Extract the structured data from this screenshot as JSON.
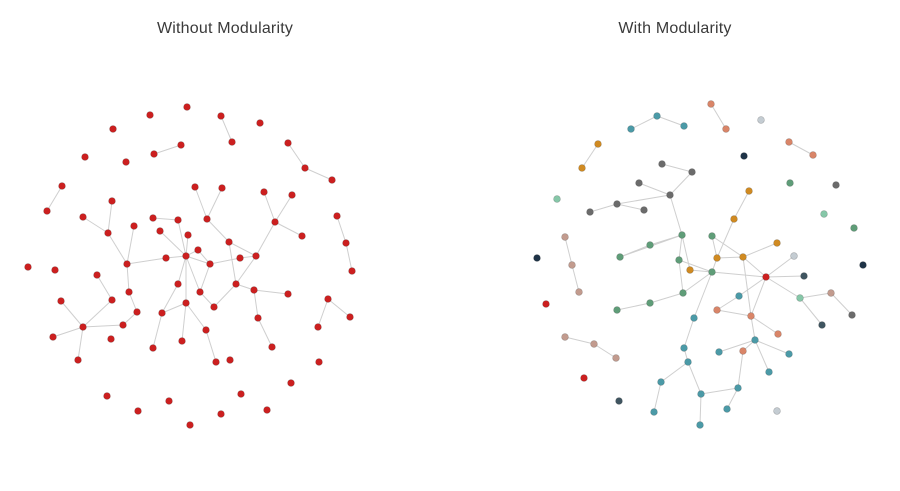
{
  "panels": {
    "left": {
      "title": "Without Modularity"
    },
    "right": {
      "title": "With Modularity"
    }
  },
  "colors": {
    "edge": "#cfcfcf",
    "left_node": "#cc1f1f",
    "red": "#cc1f1f",
    "teal": "#4b9aa7",
    "salmon": "#d98568",
    "orange": "#d08a21",
    "gray": "#6b6b6b",
    "green": "#5f9d78",
    "mint": "#86c7a8",
    "navy": "#1e3347",
    "slate": "#3f5560",
    "lightgray": "#c4ccd2",
    "rosybrown": "#c29b8e"
  }
}
